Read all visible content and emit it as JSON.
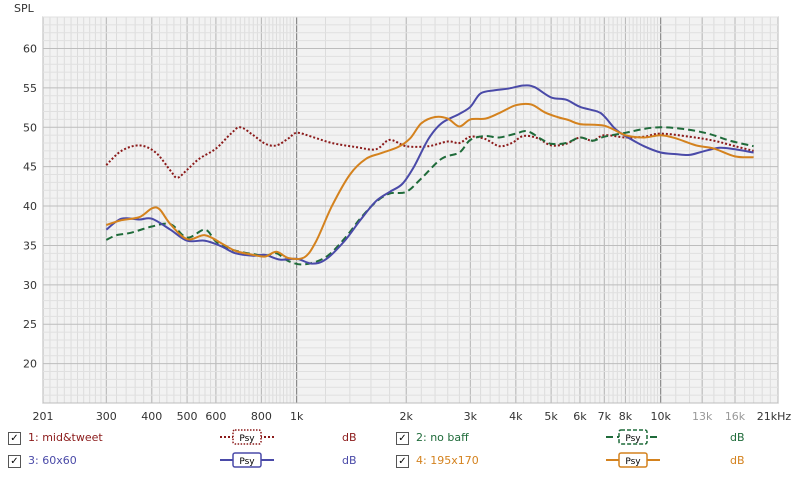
{
  "chart_data": {
    "type": "line",
    "ylabel": "SPL",
    "x_scale": "log",
    "xlim": [
      201,
      21000
    ],
    "ylim": [
      15,
      64
    ],
    "y_ticks": [
      20,
      25,
      30,
      35,
      40,
      45,
      50,
      55,
      60
    ],
    "x_tick_labels": [
      {
        "value": 201,
        "label": "201"
      },
      {
        "value": 300,
        "label": "300"
      },
      {
        "value": 400,
        "label": "400"
      },
      {
        "value": 500,
        "label": "500"
      },
      {
        "value": 600,
        "label": "600"
      },
      {
        "value": 800,
        "label": "800"
      },
      {
        "value": 1000,
        "label": "1k"
      },
      {
        "value": 2000,
        "label": "2k"
      },
      {
        "value": 3000,
        "label": "3k"
      },
      {
        "value": 4000,
        "label": "4k"
      },
      {
        "value": 5000,
        "label": "5k"
      },
      {
        "value": 6000,
        "label": "6k"
      },
      {
        "value": 7000,
        "label": "7k"
      },
      {
        "value": 8000,
        "label": "8k"
      },
      {
        "value": 10000,
        "label": "10k"
      },
      {
        "value": 13000,
        "label": "13k"
      },
      {
        "value": 16000,
        "label": "16k"
      },
      {
        "value": 21000,
        "label": "21kHz"
      }
    ],
    "grid": true,
    "series": [
      {
        "name": "1: mid&tweet",
        "unit": "dB",
        "color": "#8b1a1a",
        "dash": "2,2",
        "width": 2,
        "points": [
          [
            300,
            45.2
          ],
          [
            330,
            47.0
          ],
          [
            370,
            47.7
          ],
          [
            410,
            46.8
          ],
          [
            450,
            44.5
          ],
          [
            470,
            43.6
          ],
          [
            500,
            44.6
          ],
          [
            540,
            46.0
          ],
          [
            600,
            47.3
          ],
          [
            660,
            49.2
          ],
          [
            700,
            50.0
          ],
          [
            760,
            49.0
          ],
          [
            820,
            47.9
          ],
          [
            880,
            47.7
          ],
          [
            950,
            48.6
          ],
          [
            1000,
            49.3
          ],
          [
            1100,
            48.8
          ],
          [
            1250,
            48.0
          ],
          [
            1450,
            47.5
          ],
          [
            1650,
            47.2
          ],
          [
            1800,
            48.4
          ],
          [
            2000,
            47.6
          ],
          [
            2300,
            47.6
          ],
          [
            2600,
            48.2
          ],
          [
            2800,
            48.0
          ],
          [
            3000,
            48.8
          ],
          [
            3300,
            48.5
          ],
          [
            3600,
            47.6
          ],
          [
            3900,
            48.0
          ],
          [
            4200,
            48.9
          ],
          [
            4600,
            48.6
          ],
          [
            5000,
            47.7
          ],
          [
            5500,
            47.9
          ],
          [
            6000,
            48.7
          ],
          [
            6500,
            48.3
          ],
          [
            7000,
            49.0
          ],
          [
            8000,
            48.7
          ],
          [
            9000,
            48.8
          ],
          [
            10000,
            49.2
          ],
          [
            12000,
            48.8
          ],
          [
            14000,
            48.3
          ],
          [
            16000,
            47.6
          ],
          [
            18000,
            47.0
          ]
        ]
      },
      {
        "name": "2: no baff",
        "unit": "dB",
        "color": "#1f6b3a",
        "dash": "7,4",
        "width": 2,
        "points": [
          [
            300,
            35.7
          ],
          [
            320,
            36.3
          ],
          [
            350,
            36.6
          ],
          [
            400,
            37.4
          ],
          [
            450,
            37.7
          ],
          [
            500,
            36.0
          ],
          [
            560,
            37.0
          ],
          [
            600,
            35.5
          ],
          [
            650,
            34.6
          ],
          [
            700,
            34.2
          ],
          [
            760,
            33.9
          ],
          [
            820,
            33.7
          ],
          [
            880,
            34.0
          ],
          [
            950,
            33.0
          ],
          [
            1050,
            32.6
          ],
          [
            1200,
            33.5
          ],
          [
            1350,
            35.8
          ],
          [
            1500,
            38.5
          ],
          [
            1650,
            40.5
          ],
          [
            1800,
            41.6
          ],
          [
            2000,
            41.8
          ],
          [
            2200,
            43.5
          ],
          [
            2500,
            46.0
          ],
          [
            2800,
            46.8
          ],
          [
            3000,
            48.4
          ],
          [
            3300,
            48.9
          ],
          [
            3600,
            48.7
          ],
          [
            4000,
            49.2
          ],
          [
            4300,
            49.5
          ],
          [
            4700,
            48.5
          ],
          [
            5000,
            47.9
          ],
          [
            5500,
            48.0
          ],
          [
            6000,
            48.7
          ],
          [
            6500,
            48.3
          ],
          [
            7000,
            48.8
          ],
          [
            8000,
            49.3
          ],
          [
            9000,
            49.8
          ],
          [
            10000,
            50.0
          ],
          [
            11500,
            49.8
          ],
          [
            13500,
            49.2
          ],
          [
            15500,
            48.3
          ],
          [
            18000,
            47.6
          ]
        ]
      },
      {
        "name": "3: 60x60",
        "unit": "dB",
        "color": "#4a4aa8",
        "dash": "",
        "width": 2,
        "points": [
          [
            300,
            37.0
          ],
          [
            330,
            38.4
          ],
          [
            370,
            38.3
          ],
          [
            400,
            38.4
          ],
          [
            450,
            37.0
          ],
          [
            500,
            35.6
          ],
          [
            560,
            35.6
          ],
          [
            620,
            34.9
          ],
          [
            680,
            34.0
          ],
          [
            760,
            33.7
          ],
          [
            820,
            33.8
          ],
          [
            900,
            33.2
          ],
          [
            1000,
            33.3
          ],
          [
            1100,
            32.7
          ],
          [
            1200,
            33.2
          ],
          [
            1350,
            35.5
          ],
          [
            1500,
            38.3
          ],
          [
            1650,
            40.6
          ],
          [
            1800,
            41.8
          ],
          [
            1950,
            42.8
          ],
          [
            2100,
            45.0
          ],
          [
            2300,
            48.5
          ],
          [
            2500,
            50.5
          ],
          [
            2800,
            51.7
          ],
          [
            3000,
            52.6
          ],
          [
            3200,
            54.3
          ],
          [
            3500,
            54.7
          ],
          [
            3800,
            54.9
          ],
          [
            4200,
            55.3
          ],
          [
            4500,
            55.1
          ],
          [
            5000,
            53.8
          ],
          [
            5500,
            53.5
          ],
          [
            6000,
            52.6
          ],
          [
            6700,
            52.0
          ],
          [
            7000,
            51.4
          ],
          [
            7500,
            49.8
          ],
          [
            8000,
            48.9
          ],
          [
            9000,
            47.6
          ],
          [
            10000,
            46.8
          ],
          [
            11000,
            46.6
          ],
          [
            12000,
            46.5
          ],
          [
            13000,
            46.9
          ],
          [
            14500,
            47.4
          ],
          [
            16000,
            47.2
          ],
          [
            18000,
            46.8
          ]
        ]
      },
      {
        "name": "4: 195x170",
        "unit": "dB",
        "color": "#d4821e",
        "dash": "",
        "width": 2,
        "points": [
          [
            300,
            37.6
          ],
          [
            330,
            38.2
          ],
          [
            370,
            38.6
          ],
          [
            400,
            39.7
          ],
          [
            420,
            39.6
          ],
          [
            450,
            37.7
          ],
          [
            500,
            35.8
          ],
          [
            560,
            36.3
          ],
          [
            620,
            35.3
          ],
          [
            680,
            34.3
          ],
          [
            760,
            33.8
          ],
          [
            820,
            33.6
          ],
          [
            880,
            34.2
          ],
          [
            950,
            33.4
          ],
          [
            1050,
            33.5
          ],
          [
            1130,
            35.5
          ],
          [
            1250,
            40.0
          ],
          [
            1400,
            44.0
          ],
          [
            1550,
            46.0
          ],
          [
            1700,
            46.7
          ],
          [
            1900,
            47.5
          ],
          [
            2050,
            48.6
          ],
          [
            2200,
            50.5
          ],
          [
            2400,
            51.3
          ],
          [
            2600,
            51.1
          ],
          [
            2800,
            50.1
          ],
          [
            3000,
            51.0
          ],
          [
            3300,
            51.1
          ],
          [
            3600,
            51.8
          ],
          [
            4000,
            52.8
          ],
          [
            4400,
            52.9
          ],
          [
            4800,
            51.9
          ],
          [
            5200,
            51.3
          ],
          [
            5600,
            50.9
          ],
          [
            6000,
            50.4
          ],
          [
            7000,
            50.2
          ],
          [
            8000,
            49.0
          ],
          [
            9000,
            48.7
          ],
          [
            10000,
            49.0
          ],
          [
            11000,
            48.6
          ],
          [
            12500,
            47.7
          ],
          [
            14000,
            47.3
          ],
          [
            16000,
            46.3
          ],
          [
            18000,
            46.2
          ]
        ]
      }
    ]
  },
  "legend": {
    "rows": [
      [
        {
          "index": 0,
          "label": "1: mid&tweet",
          "checked": "✓",
          "psy": "Psy",
          "unit": "dB"
        },
        {
          "index": 1,
          "label": "2: no baff",
          "checked": "✓",
          "psy": "Psy",
          "unit": "dB"
        }
      ],
      [
        {
          "index": 2,
          "label": "3: 60x60",
          "checked": "✓",
          "psy": "Psy",
          "unit": "dB"
        },
        {
          "index": 3,
          "label": "4: 195x170",
          "checked": "✓",
          "psy": "Psy",
          "unit": "dB"
        }
      ]
    ]
  }
}
